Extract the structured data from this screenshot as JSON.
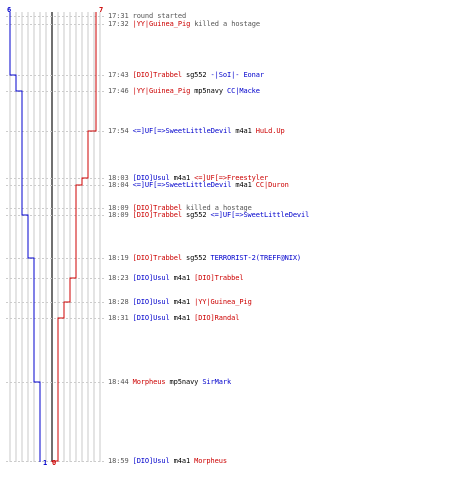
{
  "colors": {
    "blue": "#0000cc",
    "red": "#cc0000",
    "text": "#000000",
    "muted": "#555555",
    "grid": "#c8c8c8",
    "dash": "#cccccc",
    "center": "#707070"
  },
  "scores": {
    "blue_start": "6",
    "red_start": "7",
    "blue_end": "1",
    "red_end": "0"
  },
  "events": [
    {
      "time": "17:31",
      "killer": "",
      "killer_team": "",
      "weapon": "",
      "victim": "",
      "victim_team": "",
      "note": "round started"
    },
    {
      "time": "17:32",
      "killer": "|YY|Guinea_Pig",
      "killer_team": "red",
      "weapon": "",
      "victim": "",
      "victim_team": "",
      "note": "killed a hostage"
    },
    {
      "time": "17:43",
      "killer": "[DIO]Trabbel",
      "killer_team": "red",
      "weapon": "sg552",
      "victim": "-|SoI|- Eonar",
      "victim_team": "blue",
      "note": ""
    },
    {
      "time": "17:46",
      "killer": "|YY|Guinea_Pig",
      "killer_team": "red",
      "weapon": "mp5navy",
      "victim": "CC|Macke",
      "victim_team": "blue",
      "note": ""
    },
    {
      "time": "17:54",
      "killer": "<=]UF[=>SweetLittleDevil",
      "killer_team": "blue",
      "weapon": "m4a1",
      "victim": "HuLd.Up",
      "victim_team": "red",
      "note": ""
    },
    {
      "time": "18:03",
      "killer": "[DIO]Usul",
      "killer_team": "blue",
      "weapon": "m4a1",
      "victim": "<=]UF[=>Freestyler",
      "victim_team": "red",
      "note": ""
    },
    {
      "time": "18:04",
      "killer": "<=]UF[=>SweetLittleDevil",
      "killer_team": "blue",
      "weapon": "m4a1",
      "victim": "CC|Duron",
      "victim_team": "red",
      "note": ""
    },
    {
      "time": "18:09",
      "killer": "[DIO]Trabbel",
      "killer_team": "red",
      "weapon": "",
      "victim": "",
      "victim_team": "",
      "note": "killed a hostage"
    },
    {
      "time": "18:09",
      "killer": "[DIO]Trabbel",
      "killer_team": "red",
      "weapon": "sg552",
      "victim": "<=]UF[=>SweetLittleDevil",
      "victim_team": "blue",
      "note": ""
    },
    {
      "time": "18:19",
      "killer": "[DIO]Trabbel",
      "killer_team": "red",
      "weapon": "sg552",
      "victim": "TERRORIST-2(TREFF@NIX)",
      "victim_team": "blue",
      "note": ""
    },
    {
      "time": "18:23",
      "killer": "[DIO]Usul",
      "killer_team": "blue",
      "weapon": "m4a1",
      "victim": "[DIO]Trabbel",
      "victim_team": "red",
      "note": ""
    },
    {
      "time": "18:28",
      "killer": "[DIO]Usul",
      "killer_team": "blue",
      "weapon": "m4a1",
      "victim": "|YY|Guinea_Pig",
      "victim_team": "red",
      "note": ""
    },
    {
      "time": "18:31",
      "killer": "[DIO]Usul",
      "killer_team": "blue",
      "weapon": "m4a1",
      "victim": "[DIO]Randal",
      "victim_team": "red",
      "note": ""
    },
    {
      "time": "18:44",
      "killer": "Morpheus",
      "killer_team": "red",
      "weapon": "mp5navy",
      "victim": "SirMark",
      "victim_team": "blue",
      "note": ""
    },
    {
      "time": "18:59",
      "killer": "[DIO]Usul",
      "killer_team": "blue",
      "weapon": "m4a1",
      "victim": "Morpheus",
      "victim_team": "red",
      "note": ""
    }
  ]
}
